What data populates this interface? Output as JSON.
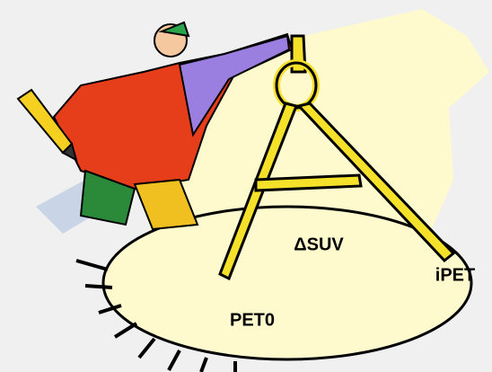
{
  "labels": [
    "ΔSUV",
    "PET0",
    "iPET"
  ]
}
